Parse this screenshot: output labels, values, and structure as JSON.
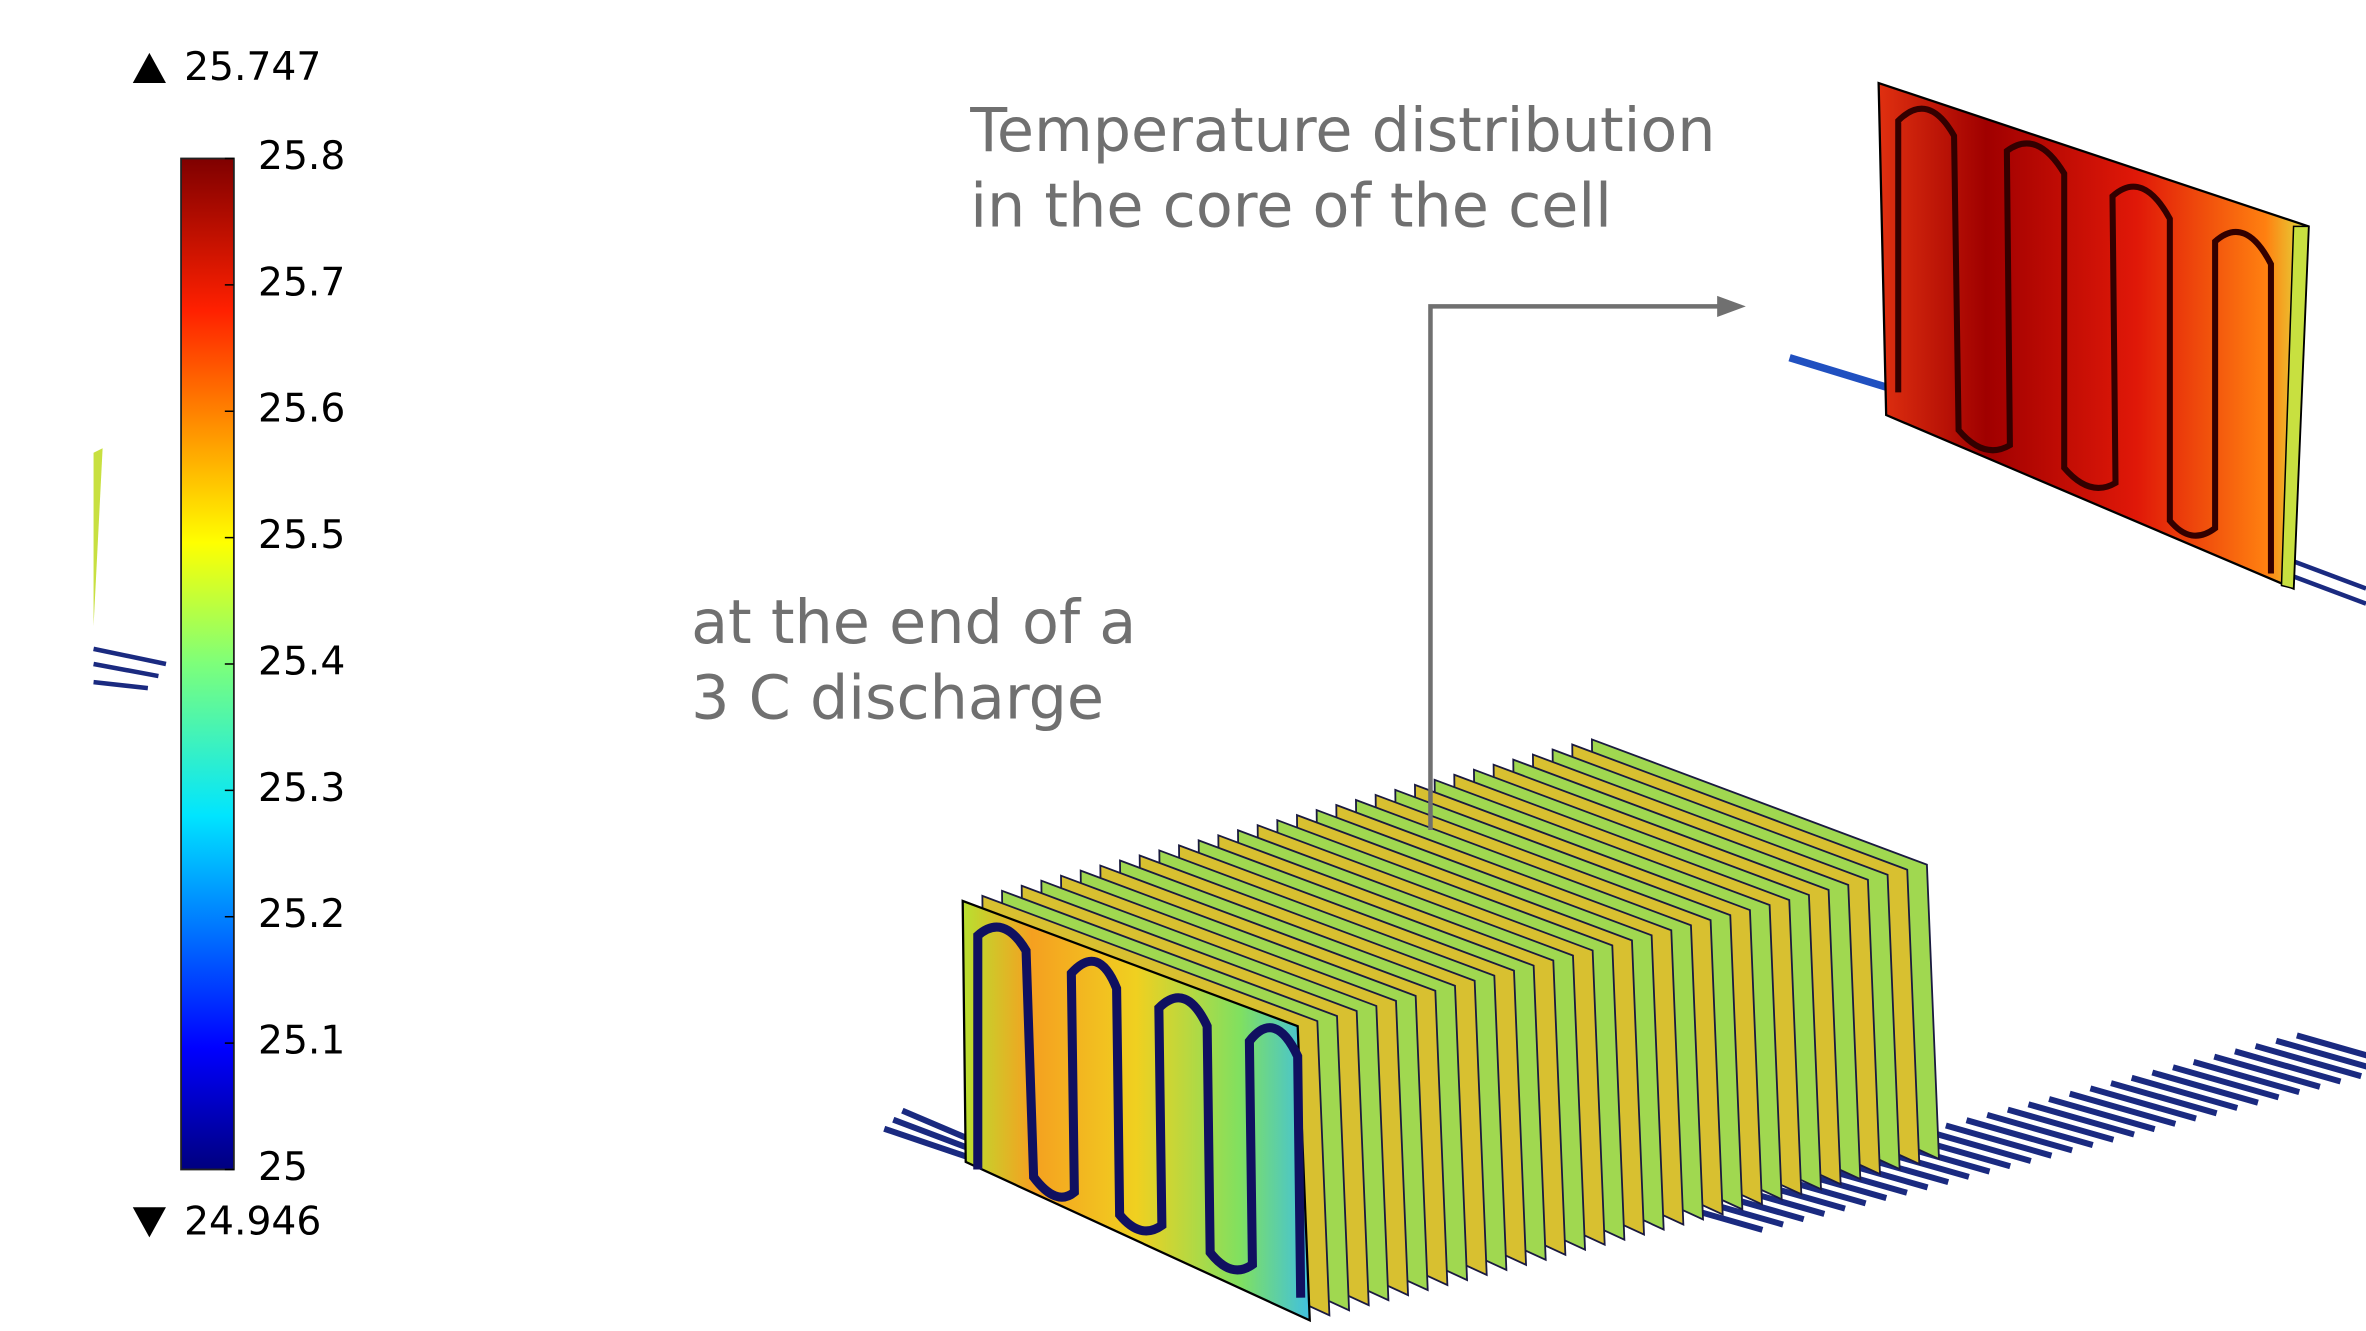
{
  "colorbar": {
    "max": 25.747,
    "min": 24.946,
    "ticks": [
      25.8,
      25.7,
      25.6,
      25.5,
      25.4,
      25.3,
      25.2,
      25.1,
      25
    ],
    "range": [
      25,
      25.8
    ]
  },
  "annotations": {
    "title_line1": "Temperature distribution",
    "title_line2": "in the core of the cell",
    "note_line1": "at the end of a",
    "note_line2": "3 C discharge"
  }
}
